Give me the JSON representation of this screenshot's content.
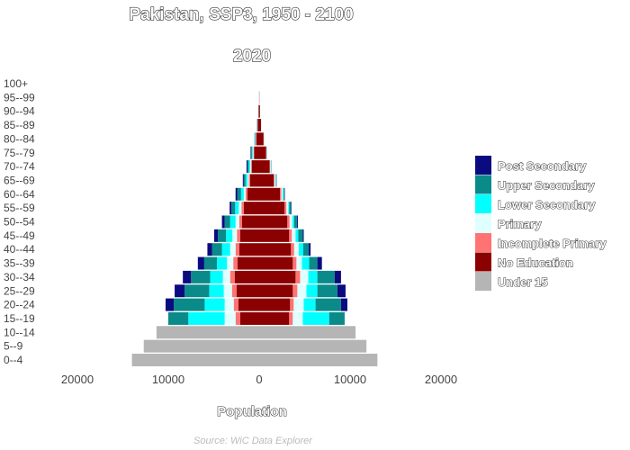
{
  "chart_data": {
    "type": "bar",
    "subtype": "population-pyramid",
    "title": "Pakistan, SSP3, 1950 - 2100",
    "subtitle": "2020",
    "xlabel": "Population",
    "source": "Source: WiC Data Explorer",
    "xlim": [
      -20000,
      20000
    ],
    "x_ticks": [
      -20000,
      -10000,
      0,
      10000,
      20000
    ],
    "x_tick_labels": [
      "20000",
      "10000",
      "0",
      "10000",
      "20000"
    ],
    "legend_position": "right",
    "categories": [
      "Post Secondary",
      "Upper Secondary",
      "Lower Secondary",
      "Primary",
      "Incomplete Primary",
      "No Education",
      "Under 15"
    ],
    "colors": {
      "Post Secondary": "#0b0b80",
      "Upper Secondary": "#0b8a8a",
      "Lower Secondary": "#00ffff",
      "Primary": "#e0ffff",
      "Incomplete Primary": "#ff7373",
      "No Education": "#8b0000",
      "Under 15": "#b5b5b5"
    },
    "stack_order": [
      "No Education",
      "Incomplete Primary",
      "Primary",
      "Lower Secondary",
      "Upper Secondary",
      "Post Secondary"
    ],
    "age_groups": [
      "0--4",
      "5--9",
      "10--14",
      "15--19",
      "20--24",
      "25--29",
      "30--34",
      "35--39",
      "40--44",
      "45--49",
      "50--54",
      "55--59",
      "60--64",
      "65--69",
      "70--74",
      "75--79",
      "80--84",
      "85--89",
      "90--94",
      "95--99",
      "100+"
    ],
    "male": [
      {
        "age": "0--4",
        "Under 15": 14000
      },
      {
        "age": "5--9",
        "Under 15": 12700
      },
      {
        "age": "10--14",
        "Under 15": 11300
      },
      {
        "age": "15--19",
        "No Education": 2100,
        "Incomplete Primary": 500,
        "Primary": 1200,
        "Lower Secondary": 4000,
        "Upper Secondary": 2200,
        "Post Secondary": 0
      },
      {
        "age": "20--24",
        "No Education": 2300,
        "Incomplete Primary": 500,
        "Primary": 1000,
        "Lower Secondary": 2200,
        "Upper Secondary": 3400,
        "Post Secondary": 900
      },
      {
        "age": "25--29",
        "No Education": 2500,
        "Incomplete Primary": 500,
        "Primary": 900,
        "Lower Secondary": 1600,
        "Upper Secondary": 2700,
        "Post Secondary": 1100
      },
      {
        "age": "30--34",
        "No Education": 2700,
        "Incomplete Primary": 500,
        "Primary": 800,
        "Lower Secondary": 1400,
        "Upper Secondary": 2100,
        "Post Secondary": 900
      },
      {
        "age": "35--39",
        "No Education": 2400,
        "Incomplete Primary": 450,
        "Primary": 700,
        "Lower Secondary": 1100,
        "Upper Secondary": 1400,
        "Post Secondary": 700
      },
      {
        "age": "40--44",
        "No Education": 2200,
        "Incomplete Primary": 400,
        "Primary": 600,
        "Lower Secondary": 900,
        "Upper Secondary": 1100,
        "Post Secondary": 500
      },
      {
        "age": "45--49",
        "No Education": 2100,
        "Incomplete Primary": 350,
        "Primary": 500,
        "Lower Secondary": 700,
        "Upper Secondary": 900,
        "Post Secondary": 400
      },
      {
        "age": "50--54",
        "No Education": 1900,
        "Incomplete Primary": 300,
        "Primary": 400,
        "Lower Secondary": 600,
        "Upper Secondary": 600,
        "Post Secondary": 300
      },
      {
        "age": "55--59",
        "No Education": 1700,
        "Incomplete Primary": 250,
        "Primary": 300,
        "Lower Secondary": 400,
        "Upper Secondary": 400,
        "Post Secondary": 200
      },
      {
        "age": "60--64",
        "No Education": 1300,
        "Incomplete Primary": 200,
        "Primary": 200,
        "Lower Secondary": 300,
        "Upper Secondary": 400,
        "Post Secondary": 200
      },
      {
        "age": "65--69",
        "No Education": 1000,
        "Incomplete Primary": 150,
        "Primary": 150,
        "Lower Secondary": 200,
        "Upper Secondary": 200,
        "Post Secondary": 100
      },
      {
        "age": "70--74",
        "No Education": 800,
        "Incomplete Primary": 100,
        "Primary": 100,
        "Lower Secondary": 150,
        "Upper Secondary": 150,
        "Post Secondary": 100
      },
      {
        "age": "75--79",
        "No Education": 550,
        "Incomplete Primary": 80,
        "Primary": 80,
        "Lower Secondary": 100,
        "Upper Secondary": 100,
        "Post Secondary": 50
      },
      {
        "age": "80--84",
        "No Education": 330,
        "Incomplete Primary": 40,
        "Primary": 40,
        "Lower Secondary": 40,
        "Upper Secondary": 40,
        "Post Secondary": 20
      },
      {
        "age": "85--89",
        "No Education": 170,
        "Incomplete Primary": 20,
        "Primary": 20,
        "Lower Secondary": 20,
        "Upper Secondary": 20,
        "Post Secondary": 10
      },
      {
        "age": "90--94",
        "No Education": 60,
        "Incomplete Primary": 10,
        "Primary": 10,
        "Lower Secondary": 10,
        "Upper Secondary": 10,
        "Post Secondary": 0
      },
      {
        "age": "95--99",
        "No Education": 10
      },
      {
        "age": "100+",
        "No Education": 0
      }
    ],
    "female": [
      {
        "age": "0--4",
        "Under 15": 13000
      },
      {
        "age": "5--9",
        "Under 15": 11800
      },
      {
        "age": "10--14",
        "Under 15": 10600
      },
      {
        "age": "15--19",
        "No Education": 3300,
        "Incomplete Primary": 400,
        "Primary": 1100,
        "Lower Secondary": 2900,
        "Upper Secondary": 1700,
        "Post Secondary": 0
      },
      {
        "age": "20--24",
        "No Education": 3400,
        "Incomplete Primary": 400,
        "Primary": 1100,
        "Lower Secondary": 1300,
        "Upper Secondary": 2800,
        "Post Secondary": 700
      },
      {
        "age": "25--29",
        "No Education": 3700,
        "Incomplete Primary": 500,
        "Primary": 1000,
        "Lower Secondary": 1200,
        "Upper Secondary": 2200,
        "Post Secondary": 900
      },
      {
        "age": "30--34",
        "No Education": 4000,
        "Incomplete Primary": 500,
        "Primary": 900,
        "Lower Secondary": 1000,
        "Upper Secondary": 1900,
        "Post Secondary": 700
      },
      {
        "age": "35--39",
        "No Education": 3700,
        "Incomplete Primary": 400,
        "Primary": 600,
        "Lower Secondary": 800,
        "Upper Secondary": 900,
        "Post Secondary": 500
      },
      {
        "age": "40--44",
        "No Education": 3500,
        "Incomplete Primary": 350,
        "Primary": 500,
        "Lower Secondary": 500,
        "Upper Secondary": 600,
        "Post Secondary": 200
      },
      {
        "age": "45--49",
        "No Education": 3300,
        "Incomplete Primary": 300,
        "Primary": 400,
        "Lower Secondary": 300,
        "Upper Secondary": 500,
        "Post Secondary": 100
      },
      {
        "age": "50--54",
        "No Education": 3100,
        "Incomplete Primary": 250,
        "Primary": 300,
        "Lower Secondary": 200,
        "Upper Secondary": 300,
        "Post Secondary": 100
      },
      {
        "age": "55--59",
        "No Education": 2800,
        "Incomplete Primary": 200,
        "Primary": 200,
        "Lower Secondary": 100,
        "Upper Secondary": 200,
        "Post Secondary": 50
      },
      {
        "age": "60--64",
        "No Education": 2300,
        "Incomplete Primary": 150,
        "Primary": 150,
        "Lower Secondary": 100,
        "Upper Secondary": 100,
        "Post Secondary": 30
      },
      {
        "age": "65--69",
        "No Education": 1600,
        "Incomplete Primary": 100,
        "Primary": 100,
        "Lower Secondary": 50,
        "Upper Secondary": 50,
        "Post Secondary": 20
      },
      {
        "age": "70--74",
        "No Education": 1150,
        "Incomplete Primary": 60,
        "Primary": 60,
        "Lower Secondary": 30,
        "Upper Secondary": 30,
        "Post Secondary": 10
      },
      {
        "age": "75--79",
        "No Education": 750,
        "Incomplete Primary": 40,
        "Primary": 40,
        "Lower Secondary": 20,
        "Upper Secondary": 20,
        "Post Secondary": 0
      },
      {
        "age": "80--84",
        "No Education": 480,
        "Incomplete Primary": 20,
        "Primary": 20,
        "Lower Secondary": 10,
        "Upper Secondary": 10,
        "Post Secondary": 0
      },
      {
        "age": "85--89",
        "No Education": 200,
        "Incomplete Primary": 10,
        "Primary": 10
      },
      {
        "age": "90--94",
        "No Education": 80
      },
      {
        "age": "95--99",
        "No Education": 20
      },
      {
        "age": "100+",
        "No Education": 0
      }
    ]
  }
}
